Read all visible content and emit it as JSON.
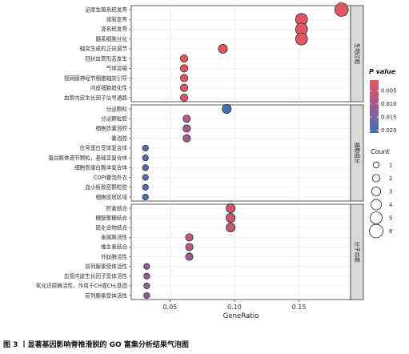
{
  "chart_data": {
    "type": "scatter",
    "xlabel": "GeneRatio",
    "x_ticks": [
      0.05,
      0.1,
      0.15
    ],
    "xlim": [
      0.02,
      0.19
    ],
    "color_legend": {
      "title": "P value",
      "ticks": [
        0.005,
        0.01,
        0.015,
        0.02
      ],
      "range": [
        0.001,
        0.021
      ],
      "low_color": "#e4565f",
      "high_color": "#3a74b7"
    },
    "size_legend": {
      "title": "Count",
      "values": [
        1,
        2,
        3,
        4,
        5,
        6
      ]
    },
    "panels": [
      {
        "strip": "生物过程",
        "terms": [
          {
            "label": "泌尿生殖系统发育",
            "x": 0.183,
            "count": 6,
            "p": 0.0015
          },
          {
            "label": "肾脏发育",
            "x": 0.152,
            "count": 5,
            "p": 0.0015
          },
          {
            "label": "肾系统发育",
            "x": 0.152,
            "count": 5,
            "p": 0.0015
          },
          {
            "label": "髓系细胞分化",
            "x": 0.152,
            "count": 5,
            "p": 0.0015
          },
          {
            "label": "轴突生成的正向调节",
            "x": 0.091,
            "count": 3,
            "p": 0.0015
          },
          {
            "label": "冠状血管形态发生",
            "x": 0.061,
            "count": 2,
            "p": 0.0015
          },
          {
            "label": "气体运输",
            "x": 0.061,
            "count": 2,
            "p": 0.0015
          },
          {
            "label": "视网膜神经节细胞轴突引导",
            "x": 0.061,
            "count": 2,
            "p": 0.0015
          },
          {
            "label": "内皮细胞趋化性",
            "x": 0.061,
            "count": 2,
            "p": 0.0015
          },
          {
            "label": "血管内皮生长因子信号通路",
            "x": 0.061,
            "count": 2,
            "p": 0.0015
          }
        ]
      },
      {
        "strip": "细胞组分",
        "terms": [
          {
            "label": "分泌颗粒",
            "x": 0.094,
            "count": 3,
            "p": 0.0195
          },
          {
            "label": "分泌颗粒腔",
            "x": 0.063,
            "count": 2,
            "p": 0.0085
          },
          {
            "label": "细胞质囊泡腔",
            "x": 0.063,
            "count": 2,
            "p": 0.0105
          },
          {
            "label": "囊泡腔",
            "x": 0.063,
            "count": 2,
            "p": 0.0105
          },
          {
            "label": "信号蛋白受体复合体",
            "x": 0.031,
            "count": 1,
            "p": 0.018
          },
          {
            "label": "蛋白酶体调节颗粒，基础亚复合体",
            "x": 0.031,
            "count": 1,
            "p": 0.018
          },
          {
            "label": "细胞质蛋白酶体复合体",
            "x": 0.031,
            "count": 1,
            "p": 0.018
          },
          {
            "label": "COPI囊泡外衣",
            "x": 0.031,
            "count": 1,
            "p": 0.0185
          },
          {
            "label": "血小板致密颗粒腔",
            "x": 0.031,
            "count": 1,
            "p": 0.0185
          },
          {
            "label": "细胞皮层区域",
            "x": 0.031,
            "count": 1,
            "p": 0.0195
          }
        ]
      },
      {
        "strip": "分子功能",
        "terms": [
          {
            "label": "肝素结合",
            "x": 0.097,
            "count": 3,
            "p": 0.004
          },
          {
            "label": "糖胺聚糖结合",
            "x": 0.097,
            "count": 3,
            "p": 0.0045
          },
          {
            "label": "硫化合物结合",
            "x": 0.097,
            "count": 3,
            "p": 0.0055
          },
          {
            "label": "金属酶活性",
            "x": 0.065,
            "count": 2,
            "p": 0.0055
          },
          {
            "label": "维生素结合",
            "x": 0.065,
            "count": 2,
            "p": 0.0075
          },
          {
            "label": "外肽酶活性",
            "x": 0.065,
            "count": 2,
            "p": 0.011
          },
          {
            "label": "前列腺素受体活性",
            "x": 0.032,
            "count": 1,
            "p": 0.0125
          },
          {
            "label": "血管内皮生长因子受体活性",
            "x": 0.032,
            "count": 1,
            "p": 0.0125
          },
          {
            "label": "氧化还原酶活性，作用于CH或CH₂基团",
            "x": 0.032,
            "count": 1,
            "p": 0.0125
          },
          {
            "label": "前列腺素受体活性",
            "x": 0.032,
            "count": 1,
            "p": 0.0125
          }
        ]
      }
    ]
  },
  "caption": "图 3 丨显著基因影响脊椎滑脱的 GO 富集分析结果气泡图"
}
